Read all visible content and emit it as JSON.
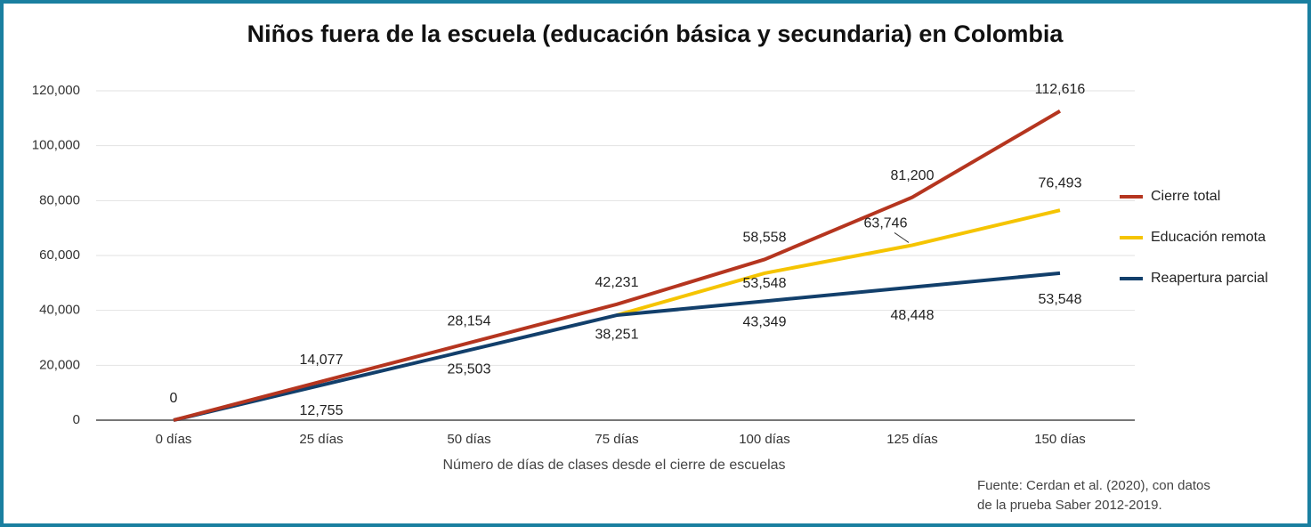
{
  "chart_data": {
    "type": "line",
    "title": "Niños fuera de la escuela (educación básica y secundaria) en Colombia",
    "x_label": "Número de días de clases desde el cierre de escuelas",
    "source": [
      "Fuente: Cerdan et al. (2020), con datos",
      "de la prueba Saber 2012-2019."
    ],
    "categories": [
      "0 días",
      "25 días",
      "50 días",
      "75 días",
      "100 días",
      "125 días",
      "150 días"
    ],
    "series": [
      {
        "name": "Cierre total",
        "color": "#b5351f",
        "values": [
          0,
          14077,
          28154,
          42231,
          58558,
          81200,
          112616
        ],
        "value_labels": [
          "0",
          "14,077",
          "28,154",
          "42,231",
          "58,558",
          "81,200",
          "112,616"
        ]
      },
      {
        "name": "Educación remota",
        "color": "#f5c400",
        "values": [
          null,
          null,
          null,
          38251,
          53548,
          63746,
          76493
        ],
        "value_labels": [
          null,
          null,
          null,
          null,
          "53,548",
          "63,746",
          "76,493"
        ]
      },
      {
        "name": "Reapertura parcial",
        "color": "#123f6b",
        "values": [
          0,
          12755,
          25503,
          38251,
          43349,
          48448,
          53548
        ],
        "value_labels": [
          null,
          "12,755",
          "25,503",
          "38,251",
          "43,349",
          "48,448",
          "53,548"
        ]
      }
    ],
    "ylim": [
      0,
      120000
    ],
    "yticks": [
      0,
      {
        "value": 20000,
        "label": "20,000"
      },
      {
        "value": 40000,
        "label": "40,000"
      },
      {
        "value": 60000,
        "label": "60,000"
      },
      {
        "value": 80000,
        "label": "80,000"
      },
      {
        "value": 100000,
        "label": "100,000"
      },
      {
        "value": 120000,
        "label": "120,000"
      }
    ],
    "grid": true,
    "legend": "right"
  }
}
